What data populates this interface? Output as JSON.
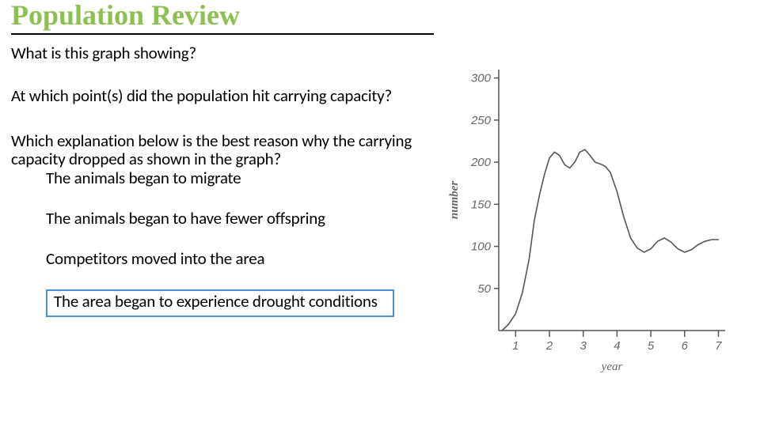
{
  "title": "Population Review",
  "title_color": "#8cc152",
  "title_fontsize": 36,
  "question1": "What is this graph showing?",
  "question2": "At which point(s) did the population hit carrying capacity?",
  "question3": "Which explanation below is the best reason why the carrying capacity dropped as shown in the graph?",
  "answers": [
    "The animals began to migrate",
    "The animals began to have fewer offspring",
    "Competitors moved into the area",
    "The area began to experience drought conditions"
  ],
  "selected_index": 3,
  "selected_border_color": "#4a90d9",
  "body_fontsize": 21,
  "chart": {
    "type": "line",
    "xlabel": "year",
    "ylabel": "number",
    "xlim": [
      0.5,
      7.2
    ],
    "ylim": [
      0,
      310
    ],
    "xticks": [
      1,
      2,
      3,
      4,
      5,
      6,
      7
    ],
    "yticks": [
      50,
      100,
      150,
      200,
      250,
      300
    ],
    "axis_color": "#555555",
    "line_color": "#555555",
    "text_color": "#666666",
    "label_fontsize": 15,
    "axis_label_fontsize": 15,
    "line_width": 1.6,
    "background_color": "#ffffff",
    "data": [
      [
        0.6,
        0
      ],
      [
        0.8,
        8
      ],
      [
        1.0,
        20
      ],
      [
        1.2,
        45
      ],
      [
        1.4,
        85
      ],
      [
        1.55,
        130
      ],
      [
        1.7,
        160
      ],
      [
        1.85,
        185
      ],
      [
        2.0,
        205
      ],
      [
        2.15,
        212
      ],
      [
        2.3,
        208
      ],
      [
        2.45,
        197
      ],
      [
        2.6,
        193
      ],
      [
        2.75,
        200
      ],
      [
        2.9,
        212
      ],
      [
        3.05,
        215
      ],
      [
        3.2,
        208
      ],
      [
        3.35,
        200
      ],
      [
        3.5,
        198
      ],
      [
        3.65,
        195
      ],
      [
        3.8,
        188
      ],
      [
        4.0,
        165
      ],
      [
        4.2,
        135
      ],
      [
        4.4,
        110
      ],
      [
        4.6,
        98
      ],
      [
        4.8,
        93
      ],
      [
        5.0,
        97
      ],
      [
        5.2,
        106
      ],
      [
        5.4,
        110
      ],
      [
        5.6,
        105
      ],
      [
        5.8,
        97
      ],
      [
        6.0,
        93
      ],
      [
        6.2,
        96
      ],
      [
        6.4,
        102
      ],
      [
        6.6,
        106
      ],
      [
        6.8,
        108
      ],
      [
        7.0,
        108
      ]
    ]
  }
}
